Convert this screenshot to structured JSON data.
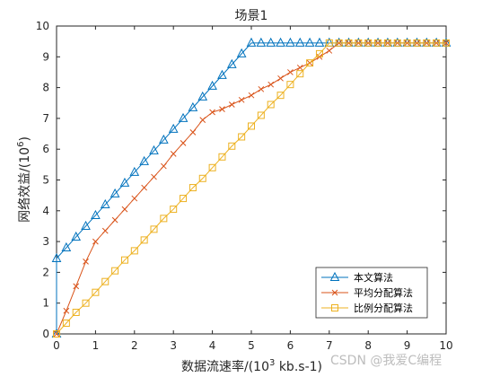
{
  "chart_data": {
    "type": "line",
    "title": "场景1",
    "xlabel_main": "数据流速率/(10",
    "xlabel_sup": "3",
    "xlabel_tail": " kb.s-1)",
    "ylabel_main": "网络效益/(10",
    "ylabel_sup": "6",
    "ylabel_tail": ")",
    "xlim": [
      0,
      10
    ],
    "ylim": [
      0,
      10
    ],
    "xticks": [
      "0",
      "1",
      "2",
      "3",
      "4",
      "5",
      "6",
      "7",
      "8",
      "9",
      "10"
    ],
    "yticks": [
      "0",
      "1",
      "2",
      "3",
      "4",
      "5",
      "6",
      "7",
      "8",
      "9",
      "10"
    ],
    "grid": false,
    "legend_position": "bottom-right",
    "series": [
      {
        "name": "本文算法",
        "color": "#0072BD",
        "marker": "triangle",
        "x": [
          0,
          0,
          0.25,
          0.5,
          0.75,
          1.0,
          1.25,
          1.5,
          1.75,
          2.0,
          2.25,
          2.5,
          2.75,
          3.0,
          3.25,
          3.5,
          3.75,
          4.0,
          4.25,
          4.5,
          4.75,
          5.0,
          5.25,
          5.5,
          5.75,
          6.0,
          6.25,
          6.5,
          6.75,
          7.0,
          7.25,
          7.5,
          7.75,
          8.0,
          8.25,
          8.5,
          8.75,
          9.0,
          9.25,
          9.5,
          9.75,
          10.0
        ],
        "y": [
          0,
          2.45,
          2.8,
          3.15,
          3.5,
          3.85,
          4.2,
          4.55,
          4.9,
          5.25,
          5.6,
          5.95,
          6.3,
          6.65,
          7.0,
          7.35,
          7.7,
          8.05,
          8.4,
          8.75,
          9.1,
          9.45,
          9.45,
          9.45,
          9.45,
          9.45,
          9.45,
          9.45,
          9.45,
          9.45,
          9.45,
          9.45,
          9.45,
          9.45,
          9.45,
          9.45,
          9.45,
          9.45,
          9.45,
          9.45,
          9.45,
          9.45
        ]
      },
      {
        "name": "平均分配算法",
        "color": "#D95319",
        "marker": "x",
        "x": [
          0,
          0.25,
          0.5,
          0.75,
          1.0,
          1.25,
          1.5,
          1.75,
          2.0,
          2.25,
          2.5,
          2.75,
          3.0,
          3.25,
          3.5,
          3.75,
          4.0,
          4.25,
          4.5,
          4.75,
          5.0,
          5.25,
          5.5,
          5.75,
          6.0,
          6.25,
          6.5,
          6.75,
          7.0,
          7.25,
          7.5,
          7.75,
          8.0,
          8.25,
          8.5,
          8.75,
          9.0,
          9.25,
          9.5,
          9.75,
          10.0
        ],
        "y": [
          0,
          0.75,
          1.55,
          2.35,
          3.0,
          3.35,
          3.7,
          4.05,
          4.4,
          4.75,
          5.1,
          5.45,
          5.85,
          6.2,
          6.55,
          6.95,
          7.2,
          7.3,
          7.45,
          7.6,
          7.75,
          7.95,
          8.1,
          8.3,
          8.5,
          8.65,
          8.8,
          9.0,
          9.2,
          9.45,
          9.45,
          9.45,
          9.45,
          9.45,
          9.45,
          9.45,
          9.45,
          9.45,
          9.45,
          9.45,
          9.45
        ]
      },
      {
        "name": "比例分配算法",
        "color": "#EDB120",
        "marker": "square",
        "x": [
          0,
          0.25,
          0.5,
          0.75,
          1.0,
          1.25,
          1.5,
          1.75,
          2.0,
          2.25,
          2.5,
          2.75,
          3.0,
          3.25,
          3.5,
          3.75,
          4.0,
          4.25,
          4.5,
          4.75,
          5.0,
          5.25,
          5.5,
          5.75,
          6.0,
          6.25,
          6.5,
          6.75,
          7.0,
          7.25,
          7.5,
          7.75,
          8.0,
          8.25,
          8.5,
          8.75,
          9.0,
          9.25,
          9.5,
          9.75,
          10.0
        ],
        "y": [
          0,
          0.35,
          0.7,
          1.0,
          1.35,
          1.7,
          2.05,
          2.4,
          2.7,
          3.05,
          3.4,
          3.75,
          4.05,
          4.4,
          4.75,
          5.05,
          5.4,
          5.75,
          6.1,
          6.4,
          6.75,
          7.1,
          7.45,
          7.75,
          8.1,
          8.45,
          8.8,
          9.1,
          9.45,
          9.45,
          9.45,
          9.45,
          9.45,
          9.45,
          9.45,
          9.45,
          9.45,
          9.45,
          9.45,
          9.45,
          9.45
        ]
      }
    ]
  },
  "watermark": "CSDN @我爱C编程"
}
